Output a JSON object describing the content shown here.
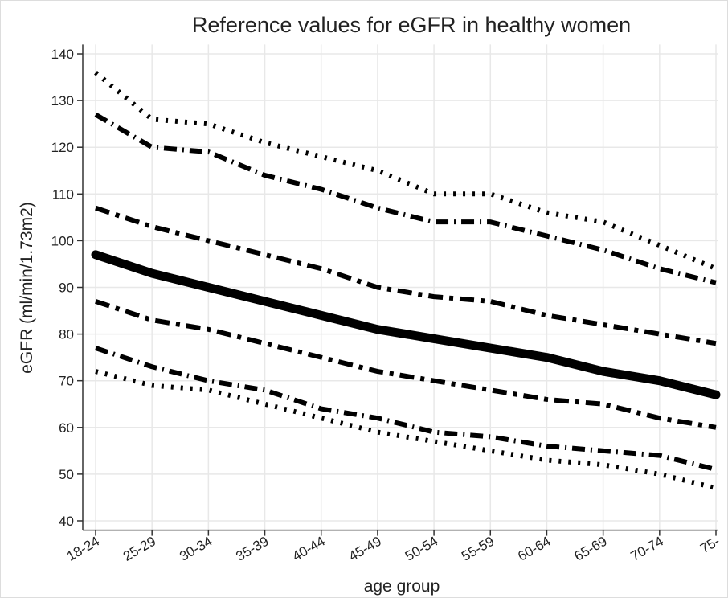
{
  "chart_data": {
    "type": "line",
    "title": "Reference values for eGFR in healthy women",
    "x_label": "age group",
    "y_label": "eGFR (ml/min/1.73m2)",
    "categories": [
      "18-24",
      "25-29",
      "30-34",
      "35-39",
      "40-44",
      "45-49",
      "50-54",
      "55-59",
      "60-64",
      "65-69",
      "70-74",
      "75-"
    ],
    "series": [
      {
        "color": "#000000",
        "values": [
          136,
          126,
          125,
          121,
          118,
          115,
          110,
          110,
          106,
          104,
          99,
          94
        ]
      },
      {
        "color": "#000000",
        "values": [
          127,
          120,
          119,
          114,
          111,
          107,
          104,
          104,
          101,
          98,
          94,
          91
        ]
      },
      {
        "color": "#000000",
        "values": [
          107,
          103,
          100,
          97,
          94,
          90,
          88,
          87,
          84,
          82,
          80,
          78
        ]
      },
      {
        "color": "#000000",
        "values": [
          97,
          93,
          90,
          87,
          84,
          81,
          79,
          77,
          75,
          72,
          70,
          67
        ]
      },
      {
        "color": "#000000",
        "values": [
          87,
          83,
          81,
          78,
          75,
          72,
          70,
          68,
          66,
          65,
          62,
          60
        ]
      },
      {
        "color": "#000000",
        "values": [
          77,
          73,
          70,
          68,
          64,
          62,
          59,
          58,
          56,
          55,
          54,
          51
        ]
      },
      {
        "color": "#000000",
        "values": [
          72,
          69,
          68,
          65,
          62,
          59,
          57,
          55,
          53,
          52,
          50,
          47
        ]
      }
    ],
    "ylim": [
      38,
      142
    ],
    "yticks": [
      40,
      50,
      60,
      70,
      80,
      90,
      100,
      110,
      120,
      130,
      140
    ],
    "grid": true
  }
}
